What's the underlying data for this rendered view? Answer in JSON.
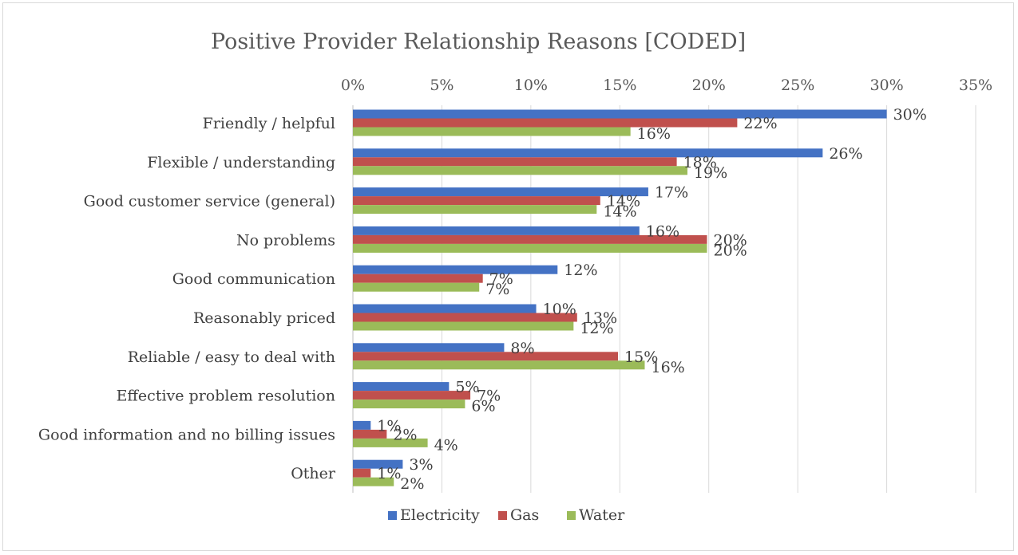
{
  "chart_data": {
    "type": "bar",
    "orientation": "horizontal",
    "title": "Positive Provider Relationship Reasons [CODED]",
    "categories": [
      "Friendly / helpful",
      "Flexible / understanding",
      "Good customer service (general)",
      "No problems",
      "Good communication",
      "Reasonably priced",
      "Reliable / easy to deal with",
      "Effective problem resolution",
      "Good information and no billing issues",
      "Other"
    ],
    "series": [
      {
        "name": "Electricity",
        "color": "#4472c4",
        "values": [
          30,
          26.4,
          16.6,
          16.1,
          11.5,
          10.3,
          8.5,
          5.4,
          1.0,
          2.8
        ],
        "labels": [
          "30%",
          "26%",
          "17%",
          "16%",
          "12%",
          "10%",
          "8%",
          "5%",
          "1%",
          "3%"
        ]
      },
      {
        "name": "Gas",
        "color": "#c0504d",
        "values": [
          21.6,
          18.2,
          13.9,
          19.9,
          7.3,
          12.6,
          14.9,
          6.6,
          1.9,
          1.0
        ],
        "labels": [
          "22%",
          "18%",
          "14%",
          "20%",
          "7%",
          "13%",
          "15%",
          "7%",
          "2%",
          "1%"
        ]
      },
      {
        "name": "Water",
        "color": "#9bbb59",
        "values": [
          15.6,
          18.8,
          13.7,
          19.9,
          7.1,
          12.4,
          16.4,
          6.3,
          4.2,
          2.3
        ],
        "labels": [
          "16%",
          "19%",
          "14%",
          "20%",
          "7%",
          "12%",
          "16%",
          "6%",
          "4%",
          "2%"
        ]
      }
    ],
    "xlim": [
      0,
      35
    ],
    "xticks": [
      "0%",
      "5%",
      "10%",
      "15%",
      "20%",
      "25%",
      "30%",
      "35%"
    ],
    "x_axis_position": "top",
    "grid": true,
    "legend_position": "bottom"
  }
}
